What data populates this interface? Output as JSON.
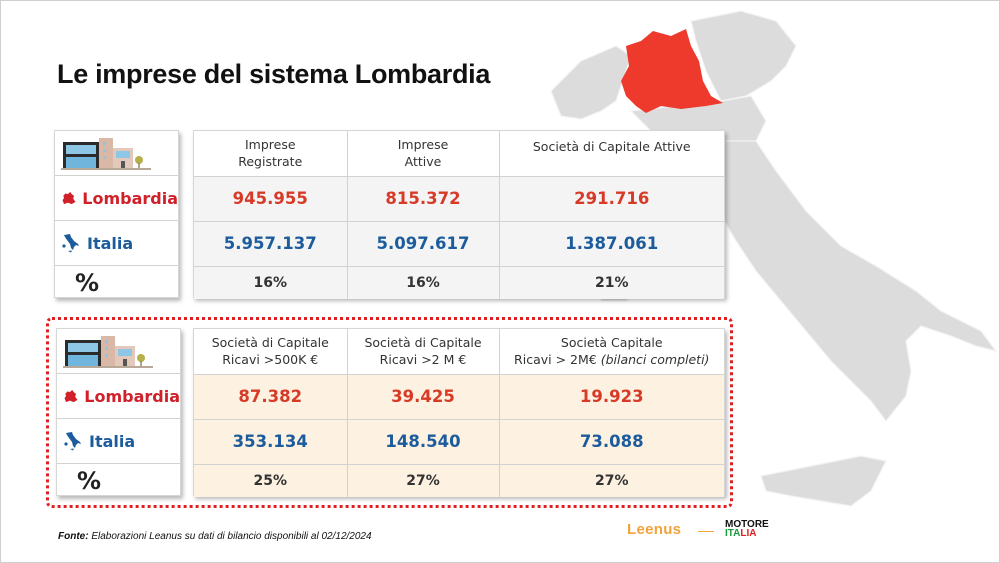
{
  "title": "Le imprese del sistema Lombardia",
  "row_labels": {
    "lombardia": "Lombardia",
    "italia": "Italia",
    "percent": "%"
  },
  "table1": {
    "headers": [
      "Impresе Registrate",
      "Imprese Attive",
      "Società di Capitale Attive"
    ],
    "header_lines": [
      [
        "Imprese",
        "Registrate"
      ],
      [
        "Imprese",
        "Attive"
      ],
      [
        "Società di Capitale Attive",
        ""
      ]
    ],
    "lombardia": [
      "945.955",
      "815.372",
      "291.716"
    ],
    "italia": [
      "5.957.137",
      "5.097.617",
      "1.387.061"
    ],
    "percent": [
      "16%",
      "16%",
      "21%"
    ]
  },
  "table2": {
    "header_lines": [
      [
        "Società di Capitale",
        "Ricavi >500K €"
      ],
      [
        "Società di Capitale",
        "Ricavi >2 M €"
      ],
      [
        "Società Capitale",
        "Ricavi > 2M€",
        "(bilanci completi)"
      ]
    ],
    "lombardia": [
      "87.382",
      "39.425",
      "19.923"
    ],
    "italia": [
      "353.134",
      "148.540",
      "73.088"
    ],
    "percent": [
      "25%",
      "27%",
      "27%"
    ]
  },
  "source": {
    "label": "Fonte:",
    "text": "Elaborazioni Leanus su dati di bilancio disponibili al 02/12/2024"
  },
  "logos": {
    "leenus": "Leenus",
    "motore_top": "MOTORE",
    "motore_it_green": "ITA",
    "motore_it_red": "LIA"
  },
  "colors": {
    "lombardia_red": "#d73a27",
    "italia_blue": "#1d5c9c",
    "map_gray": "#dcdcdc",
    "map_highlight": "#ee3a2c",
    "table2_bg": "#fdf1e1",
    "table1_bg": "#f4f4f4",
    "dotted_border": "#e02020"
  }
}
